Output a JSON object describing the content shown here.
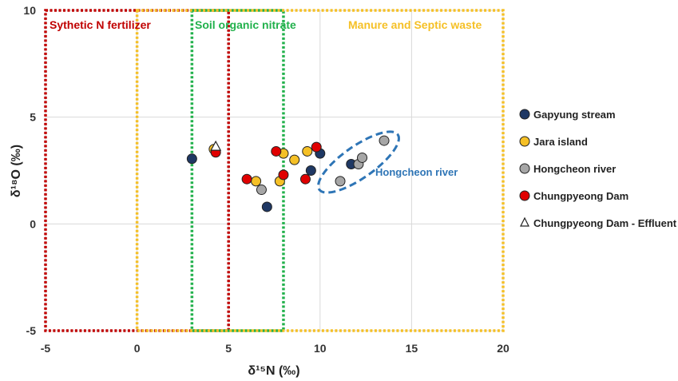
{
  "chart_data": {
    "type": "scatter",
    "xlabel": "δ¹⁵N (‰)",
    "ylabel": "δ¹⁸O (‰)",
    "xlim": [
      -5,
      20
    ],
    "ylim": [
      -5,
      10
    ],
    "x_ticks": [
      "-5",
      "0",
      "5",
      "10",
      "15",
      "20"
    ],
    "y_ticks": [
      "-5",
      "0",
      "5",
      "10"
    ],
    "grid": true,
    "legend_position": "right",
    "regions": [
      {
        "name": "Sythetic N fertilizer",
        "x": [
          -5,
          5
        ],
        "y": [
          -5,
          10
        ],
        "color": "#c00000"
      },
      {
        "name": "Soil organic nitrate",
        "x": [
          3,
          8
        ],
        "y": [
          -5,
          10
        ],
        "color": "#22b14c"
      },
      {
        "name": "Manure and Septic waste",
        "x": [
          0,
          20
        ],
        "y": [
          -5,
          10
        ],
        "color": "#f5c026"
      }
    ],
    "annotation": {
      "label": "Hongcheon river",
      "color": "#2e75b6"
    },
    "series": [
      {
        "name": "Gapyung stream",
        "marker": "circle",
        "color": "#1f3864",
        "points": [
          [
            3.0,
            3.05
          ],
          [
            7.1,
            0.8
          ],
          [
            9.5,
            2.5
          ],
          [
            10.0,
            3.3
          ],
          [
            11.7,
            2.8
          ]
        ]
      },
      {
        "name": "Jara island",
        "marker": "circle",
        "color": "#f5c026",
        "points": [
          [
            4.2,
            3.5
          ],
          [
            6.5,
            2.0
          ],
          [
            7.8,
            2.0
          ],
          [
            8.0,
            3.3
          ],
          [
            8.6,
            3.0
          ],
          [
            9.3,
            3.4
          ]
        ]
      },
      {
        "name": "Hongcheon river",
        "marker": "circle",
        "color": "#a6a6a6",
        "points": [
          [
            6.8,
            1.6
          ],
          [
            11.1,
            2.0
          ],
          [
            12.1,
            2.8
          ],
          [
            12.3,
            3.1
          ],
          [
            13.5,
            3.9
          ]
        ]
      },
      {
        "name": "Chungpyeong Dam",
        "marker": "circle",
        "color": "#e00000",
        "points": [
          [
            4.3,
            3.35
          ],
          [
            6.0,
            2.1
          ],
          [
            7.6,
            3.4
          ],
          [
            8.0,
            2.3
          ],
          [
            9.2,
            2.1
          ],
          [
            9.8,
            3.6
          ]
        ]
      },
      {
        "name": "Chungpyeong Dam - Effluent",
        "marker": "triangle",
        "color": "#ffffff",
        "points": [
          [
            4.3,
            3.6
          ]
        ]
      }
    ]
  }
}
